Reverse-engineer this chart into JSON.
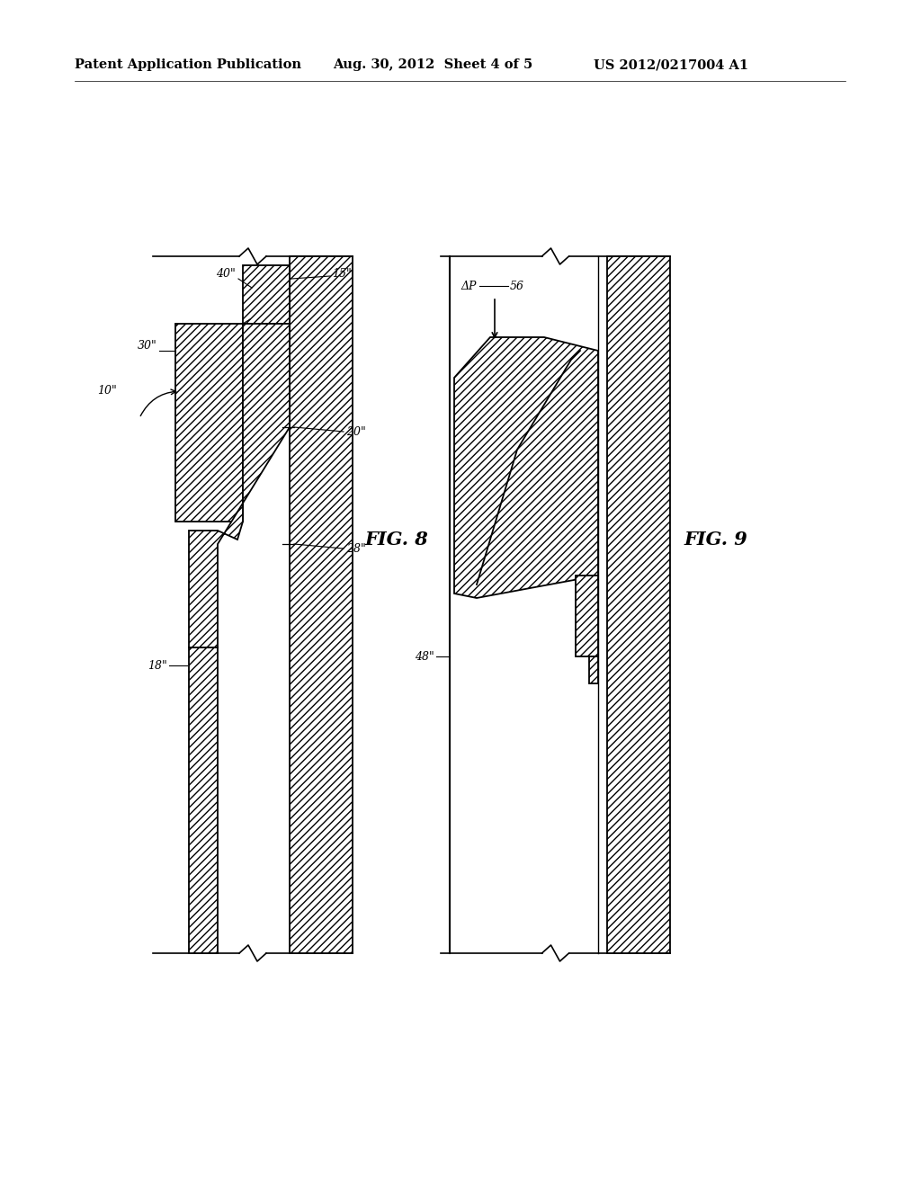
{
  "title_left": "Patent Application Publication",
  "title_center": "Aug. 30, 2012  Sheet 4 of 5",
  "title_right": "US 2012/0217004 A1",
  "fig8_label": "FIG. 8",
  "fig9_label": "FIG. 9",
  "bg_color": "#ffffff",
  "line_color": "#000000"
}
